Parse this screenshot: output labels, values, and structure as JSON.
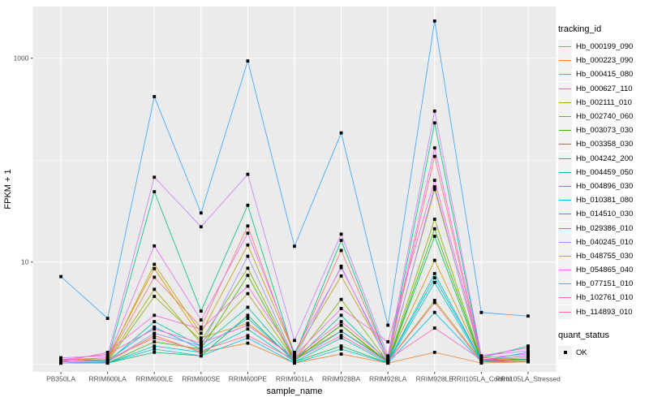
{
  "chart_data": {
    "type": "line",
    "title": "",
    "xlabel": "sample_name",
    "ylabel": "FPKM + 1",
    "y_scale": "log10",
    "y_domain_log10": [
      -0.078,
      3.508
    ],
    "y_major_ticks": [
      {
        "label": "1000",
        "value": 1000
      },
      {
        "label": "10",
        "value": 10
      }
    ],
    "y_minor_gridlines": [
      1,
      100
    ],
    "grid": true,
    "panel_bg": "#EBEBEB",
    "grid_color": "#FFFFFF",
    "tick_color": "#333333",
    "tick_label_color": "#4D4D4D",
    "point_shape": "black-square",
    "legend_position": "right",
    "categories": [
      "PB350LA",
      "RRIM600LA",
      "RRIM600LE",
      "RRIM600SE",
      "RRIM600PE",
      "RRIM901LA",
      "RRIM928BA",
      "RRIM928LA",
      "RRIM928LE",
      "RRII105LA_Control",
      "RRII105LA_Stressed"
    ],
    "series": [
      {
        "name": "Hb_000199_090",
        "color": "#F8766D",
        "values": [
          1.1,
          1.1,
          7.1,
          2.3,
          22.6,
          1.2,
          13.0,
          1.1,
          109,
          1.1,
          1.1
        ]
      },
      {
        "name": "Hb_000223_090",
        "color": "#EA8331",
        "values": [
          1.02,
          1.05,
          1.9,
          1.3,
          1.6,
          1.02,
          1.25,
          1.02,
          1.3,
          1.02,
          1.05
        ]
      },
      {
        "name": "Hb_000415_080",
        "color": "#D89000",
        "values": [
          1.08,
          1.15,
          8.6,
          1.8,
          2.5,
          1.15,
          2.1,
          1.08,
          10.4,
          1.1,
          1.1
        ]
      },
      {
        "name": "Hb_000627_110",
        "color": "#C09B00",
        "values": [
          1.1,
          1.1,
          9.5,
          2.0,
          14.7,
          1.25,
          7.3,
          1.1,
          51.5,
          1.15,
          1.1
        ]
      },
      {
        "name": "Hb_002111_010",
        "color": "#A3A500",
        "values": [
          1.05,
          1.08,
          5.4,
          1.6,
          4.9,
          1.1,
          2.4,
          1.05,
          4.2,
          1.08,
          1.08
        ]
      },
      {
        "name": "Hb_002740_060",
        "color": "#7CAE00",
        "values": [
          1.02,
          1.05,
          4.6,
          1.7,
          8.7,
          1.1,
          4.3,
          1.05,
          26.3,
          1.1,
          1.2
        ]
      },
      {
        "name": "Hb_003073_030",
        "color": "#39B600",
        "values": [
          1.02,
          1.02,
          1.65,
          1.4,
          7.4,
          1.08,
          2.4,
          1.02,
          21.2,
          1.08,
          1.1
        ]
      },
      {
        "name": "Hb_003358_030",
        "color": "#00BB4E",
        "values": [
          1.02,
          1.02,
          1.3,
          1.2,
          3.0,
          1.05,
          1.5,
          1.02,
          17.9,
          1.05,
          1.12
        ]
      },
      {
        "name": "Hb_004242_200",
        "color": "#00BF7D",
        "values": [
          1.05,
          1.1,
          49.0,
          3.3,
          36.1,
          1.2,
          16.3,
          1.1,
          232,
          1.15,
          1.5
        ]
      },
      {
        "name": "Hb_004459_050",
        "color": "#00C1A3",
        "values": [
          1.02,
          1.05,
          2.6,
          1.5,
          3.6,
          1.08,
          3.0,
          1.05,
          7.7,
          1.08,
          1.3
        ]
      },
      {
        "name": "Hb_004896_030",
        "color": "#00BFC4",
        "values": [
          1.02,
          1.02,
          1.5,
          1.3,
          2.2,
          1.05,
          1.8,
          1.02,
          6.3,
          1.05,
          1.1
        ]
      },
      {
        "name": "Hb_010381_080",
        "color": "#00BAE0",
        "values": [
          1.02,
          1.02,
          1.4,
          1.2,
          1.8,
          1.02,
          1.4,
          1.02,
          3.2,
          1.05,
          1.05
        ]
      },
      {
        "name": "Hb_014510_030",
        "color": "#00B0F6",
        "values": [
          1.05,
          1.08,
          2.3,
          1.4,
          2.8,
          1.08,
          2.1,
          1.05,
          7.0,
          1.08,
          1.1
        ]
      },
      {
        "name": "Hb_029386_010",
        "color": "#35A2FF",
        "values": [
          7.2,
          2.8,
          420,
          30.3,
          940,
          14.3,
          185,
          2.4,
          2320,
          3.2,
          2.95
        ]
      },
      {
        "name": "Hb_040245_010",
        "color": "#9590FF",
        "values": [
          1.02,
          1.05,
          2.0,
          1.5,
          11.4,
          1.12,
          9.1,
          1.05,
          54.8,
          1.1,
          1.2
        ]
      },
      {
        "name": "Hb_048755_030",
        "color": "#C77CFF",
        "values": [
          1.15,
          1.2,
          68.0,
          22.2,
          72.6,
          1.7,
          18.8,
          1.2,
          303,
          1.2,
          1.35
        ]
      },
      {
        "name": "Hb_054865_040",
        "color": "#E76BF3",
        "values": [
          1.1,
          1.15,
          14.4,
          2.7,
          19.2,
          1.3,
          8.8,
          1.15,
          132,
          1.15,
          1.25
        ]
      },
      {
        "name": "Hb_077151_010",
        "color": "#FA62DB",
        "values": [
          1.05,
          1.3,
          3.0,
          2.2,
          5.8,
          1.2,
          3.5,
          1.65,
          63.4,
          1.2,
          1.44
        ]
      },
      {
        "name": "Hb_102761_010",
        "color": "#FF62BC",
        "values": [
          1.1,
          1.25,
          2.2,
          1.6,
          2.4,
          1.15,
          2.6,
          1.1,
          2.25,
          1.1,
          1.15
        ]
      },
      {
        "name": "Hb_114893_010",
        "color": "#FF6A98",
        "values": [
          1.05,
          1.1,
          1.8,
          1.35,
          1.9,
          1.1,
          1.9,
          1.05,
          4.0,
          1.05,
          1.1
        ]
      }
    ]
  },
  "legend": {
    "tracking_title": "tracking_id",
    "quant_title": "quant_status",
    "quant_ok_label": "OK",
    "key_bg": "#F2F2F2"
  }
}
